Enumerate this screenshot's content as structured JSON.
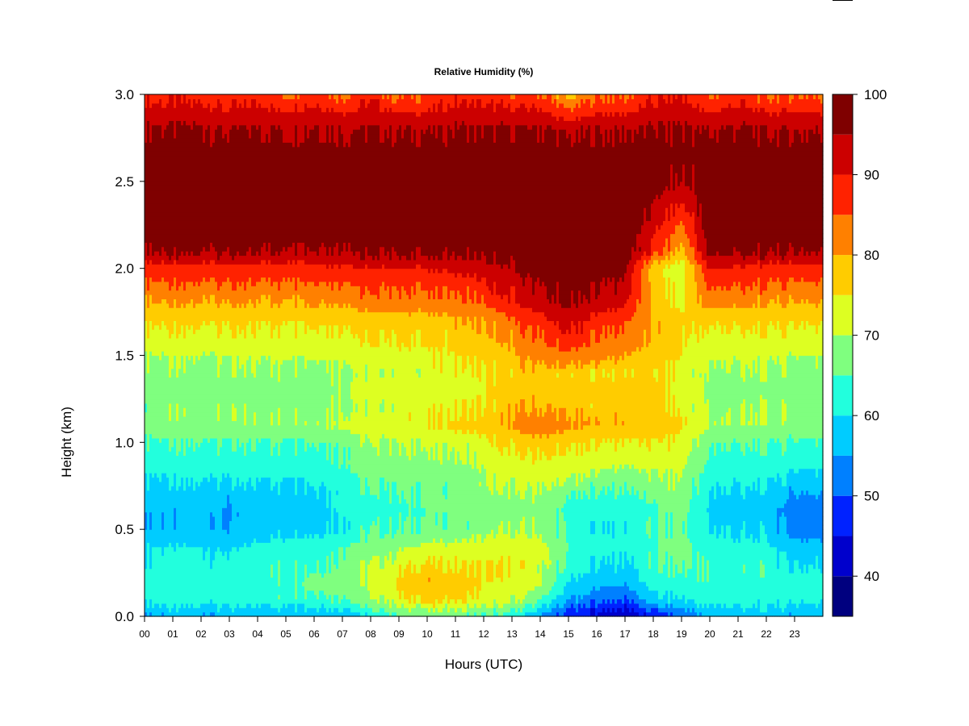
{
  "chart_data": {
    "type": "heatmap",
    "title": "Relative Humidity (%)",
    "xlabel": "Hours (UTC)",
    "ylabel": "Height (km)",
    "xlim": [
      0,
      24
    ],
    "ylim": [
      0,
      3
    ],
    "x_ticks": [
      "00",
      "01",
      "02",
      "03",
      "04",
      "05",
      "06",
      "07",
      "08",
      "09",
      "10",
      "11",
      "12",
      "13",
      "14",
      "15",
      "16",
      "17",
      "18",
      "19",
      "20",
      "21",
      "22",
      "23"
    ],
    "y_ticks": [
      "0.0",
      "0.5",
      "1.0",
      "1.5",
      "2.0",
      "2.5",
      "3.0"
    ],
    "colorbar": {
      "range": [
        35,
        100
      ],
      "tick_values": [
        40,
        50,
        60,
        70,
        80,
        90,
        100
      ],
      "tick_labels": [
        "40",
        "50",
        "60",
        "70",
        "80",
        "90",
        "100"
      ],
      "levels": [
        {
          "from": 35,
          "to": 40,
          "color": "#00007f"
        },
        {
          "from": 40,
          "to": 45,
          "color": "#0000cc"
        },
        {
          "from": 45,
          "to": 50,
          "color": "#0022ff"
        },
        {
          "from": 50,
          "to": 55,
          "color": "#0080ff"
        },
        {
          "from": 55,
          "to": 60,
          "color": "#00ccff"
        },
        {
          "from": 60,
          "to": 65,
          "color": "#22ffdd"
        },
        {
          "from": 65,
          "to": 70,
          "color": "#7fff7f"
        },
        {
          "from": 70,
          "to": 75,
          "color": "#ddff22"
        },
        {
          "from": 75,
          "to": 80,
          "color": "#ffcc00"
        },
        {
          "from": 80,
          "to": 85,
          "color": "#ff8000"
        },
        {
          "from": 85,
          "to": 90,
          "color": "#ff2200"
        },
        {
          "from": 90,
          "to": 95,
          "color": "#cc0000"
        },
        {
          "from": 95,
          "to": 100,
          "color": "#7f0000"
        }
      ]
    },
    "grid": false,
    "height_profile_km": [
      0.0,
      0.1,
      0.2,
      0.3,
      0.4,
      0.5,
      0.6,
      0.7,
      0.8,
      1.0,
      1.1,
      1.2,
      1.4,
      1.5,
      1.7,
      1.8,
      2.0,
      2.1,
      2.5,
      2.8,
      3.0
    ],
    "rh_profiles": [
      {
        "hour": 0,
        "values": [
          55,
          63,
          63,
          62,
          60,
          57,
          56,
          57,
          60,
          64,
          68,
          67,
          68,
          70,
          76,
          80,
          88,
          96,
          99,
          96,
          88
        ]
      },
      {
        "hour": 1,
        "values": [
          55,
          63,
          63,
          62,
          60,
          56,
          55,
          57,
          60,
          64,
          69,
          68,
          68,
          70,
          76,
          80,
          88,
          96,
          99,
          96,
          88
        ]
      },
      {
        "hour": 2,
        "values": [
          55,
          63,
          64,
          62,
          60,
          58,
          57,
          58,
          61,
          65,
          69,
          68,
          68,
          70,
          76,
          80,
          88,
          96,
          99,
          96,
          88
        ]
      },
      {
        "hour": 3,
        "values": [
          55,
          63,
          63,
          62,
          59,
          55,
          54,
          56,
          60,
          64,
          69,
          68,
          68,
          70,
          76,
          80,
          88,
          96,
          99,
          95,
          86
        ]
      },
      {
        "hour": 4,
        "values": [
          55,
          63,
          64,
          63,
          61,
          58,
          57,
          58,
          61,
          65,
          70,
          68,
          69,
          71,
          76,
          80,
          88,
          96,
          99,
          96,
          88
        ]
      },
      {
        "hour": 5,
        "values": [
          56,
          64,
          65,
          64,
          62,
          58,
          57,
          58,
          61,
          65,
          70,
          68,
          69,
          71,
          76,
          80,
          88,
          96,
          99,
          95,
          85
        ]
      },
      {
        "hour": 6,
        "values": [
          57,
          65,
          66,
          65,
          63,
          59,
          58,
          60,
          62,
          66,
          70,
          69,
          69,
          71,
          77,
          81,
          89,
          96,
          99,
          96,
          88
        ]
      },
      {
        "hour": 7,
        "values": [
          57,
          66,
          68,
          67,
          65,
          61,
          61,
          62,
          64,
          67,
          71,
          70,
          70,
          72,
          77,
          81,
          89,
          96,
          99,
          95,
          84
        ]
      },
      {
        "hour": 8,
        "values": [
          60,
          69,
          71,
          70,
          67,
          64,
          63,
          64,
          66,
          69,
          73,
          71,
          71,
          73,
          78,
          82,
          90,
          96,
          99,
          96,
          88
        ]
      },
      {
        "hour": 9,
        "values": [
          64,
          74,
          76,
          73,
          69,
          65,
          64,
          65,
          67,
          70,
          74,
          72,
          72,
          74,
          78,
          82,
          90,
          97,
          99,
          95,
          84
        ]
      },
      {
        "hour": 10,
        "values": [
          66,
          77,
          80,
          76,
          71,
          66,
          65,
          66,
          67,
          71,
          75,
          73,
          72,
          74,
          78,
          82,
          90,
          97,
          99,
          95,
          85
        ]
      },
      {
        "hour": 11,
        "values": [
          66,
          76,
          78,
          75,
          71,
          67,
          66,
          67,
          68,
          72,
          76,
          74,
          73,
          75,
          79,
          83,
          91,
          97,
          99,
          96,
          88
        ]
      },
      {
        "hour": 12,
        "values": [
          64,
          73,
          75,
          74,
          72,
          68,
          67,
          68,
          69,
          73,
          77,
          75,
          74,
          76,
          80,
          85,
          92,
          97,
          99,
          96,
          87
        ]
      },
      {
        "hour": 13,
        "values": [
          62,
          71,
          74,
          74,
          73,
          69,
          68,
          69,
          71,
          76,
          81,
          79,
          77,
          79,
          84,
          89,
          95,
          98,
          99,
          96,
          86
        ]
      },
      {
        "hour": 14,
        "values": [
          55,
          66,
          71,
          72,
          72,
          69,
          69,
          70,
          72,
          78,
          84,
          80,
          78,
          82,
          88,
          93,
          97,
          99,
          99,
          96,
          86
        ]
      },
      {
        "hour": 15,
        "values": [
          46,
          55,
          60,
          63,
          65,
          63,
          63,
          65,
          70,
          76,
          81,
          78,
          76,
          84,
          92,
          96,
          98,
          99,
          99,
          94,
          78
        ]
      },
      {
        "hour": 16,
        "values": [
          43,
          52,
          57,
          60,
          62,
          61,
          62,
          64,
          69,
          75,
          80,
          77,
          76,
          82,
          88,
          93,
          97,
          99,
          99,
          95,
          84
        ]
      },
      {
        "hour": 17,
        "values": [
          40,
          50,
          56,
          59,
          61,
          61,
          62,
          64,
          68,
          74,
          80,
          77,
          76,
          80,
          86,
          91,
          96,
          99,
          99,
          95,
          84
        ]
      },
      {
        "hour": 18,
        "values": [
          46,
          58,
          62,
          64,
          65,
          64,
          64,
          66,
          69,
          74,
          79,
          77,
          76,
          78,
          80,
          78,
          76,
          88,
          98,
          96,
          88
        ]
      },
      {
        "hour": 19,
        "values": [
          50,
          60,
          64,
          66,
          67,
          66,
          67,
          68,
          70,
          73,
          76,
          74,
          73,
          75,
          76,
          74,
          72,
          78,
          95,
          96,
          90
        ]
      },
      {
        "hour": 20,
        "values": [
          55,
          63,
          65,
          64,
          62,
          60,
          59,
          60,
          62,
          66,
          70,
          69,
          69,
          71,
          76,
          82,
          90,
          97,
          99,
          95,
          84
        ]
      },
      {
        "hour": 21,
        "values": [
          56,
          63,
          64,
          63,
          61,
          59,
          58,
          59,
          61,
          65,
          70,
          69,
          69,
          71,
          76,
          81,
          89,
          96,
          99,
          96,
          88
        ]
      },
      {
        "hour": 22,
        "values": [
          56,
          63,
          64,
          63,
          61,
          58,
          57,
          58,
          61,
          65,
          70,
          69,
          69,
          71,
          76,
          80,
          88,
          96,
          99,
          95,
          84
        ]
      },
      {
        "hour": 23,
        "values": [
          55,
          62,
          62,
          60,
          57,
          53,
          52,
          55,
          59,
          64,
          69,
          68,
          68,
          70,
          76,
          80,
          88,
          96,
          99,
          95,
          85
        ]
      },
      {
        "hour": 24,
        "values": [
          55,
          62,
          62,
          60,
          57,
          52,
          51,
          55,
          59,
          64,
          69,
          68,
          68,
          70,
          76,
          80,
          88,
          96,
          99,
          95,
          84
        ]
      }
    ]
  }
}
